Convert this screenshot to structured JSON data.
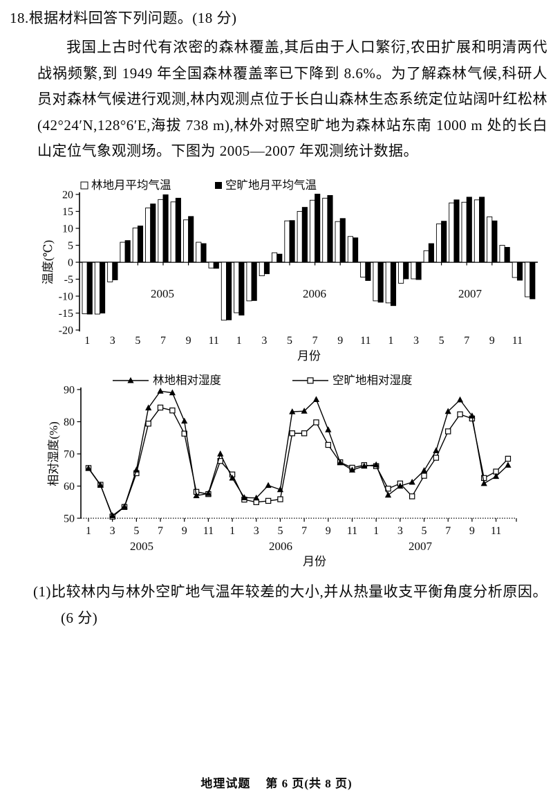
{
  "page": {
    "question_header": "18.根据材料回答下列问题。(18 分)",
    "paragraph": "我国上古时代有浓密的森林覆盖,其后由于人口繁衍,农田扩展和明清两代战祸频繁,到 1949 年全国森林覆盖率已下降到 8.6%。为了解森林气候,科研人员对森林气候进行观测,林内观测点位于长白山森林生态系统定位站阔叶红松林(42°24′N,128°6′E,海拔 738 m),林外对照空旷地为森林站东南 1000 m 处的长白山定位气象观测场。下图为 2005—2007 年观测统计数据。",
    "question1": "(1)比较林内与林外空旷地气温年较差的大小,并从热量收支平衡角度分析原因。(6 分)",
    "footer": {
      "doc": "地理试题",
      "page_info": "第 6 页(共 8 页)"
    }
  },
  "chart_data": [
    {
      "type": "bar",
      "title": "",
      "ylabel": "温度(℃)",
      "xlabel": "月份",
      "ylim": [
        -20,
        20
      ],
      "yticks": [
        20,
        15,
        10,
        5,
        0,
        -5,
        -10,
        -15,
        -20
      ],
      "xtick_labels": [
        "1",
        "3",
        "5",
        "7",
        "9",
        "11"
      ],
      "years": [
        "2005",
        "2006",
        "2007"
      ],
      "legend": [
        "林地月平均气温",
        "空旷地月平均气温"
      ],
      "legend_markers": [
        "open-square-marker",
        "filled-square-marker"
      ],
      "series": [
        {
          "name": "林地月平均气温",
          "style": "open",
          "values": [
            -15.2,
            -15.3,
            -5.8,
            5.9,
            10.1,
            16.0,
            18.5,
            17.8,
            12.5,
            5.9,
            -1.7,
            -17.1,
            -14.9,
            -11.4,
            -4.0,
            2.8,
            12.2,
            15.0,
            18.3,
            18.9,
            12.0,
            7.6,
            -4.4,
            -11.4,
            -12.0,
            -6.2,
            -4.9,
            3.4,
            11.3,
            17.5,
            17.7,
            18.4,
            13.4,
            5.0,
            -4.5,
            -10.2
          ]
        },
        {
          "name": "空旷地月平均气温",
          "style": "filled",
          "values": [
            -15.3,
            -15.0,
            -5.2,
            6.4,
            10.7,
            17.2,
            19.9,
            18.9,
            13.5,
            5.5,
            -1.8,
            -17.0,
            -15.6,
            -11.3,
            -3.4,
            2.4,
            12.3,
            16.2,
            20.1,
            19.7,
            12.9,
            7.2,
            -5.4,
            -11.8,
            -12.8,
            -4.9,
            -5.1,
            5.5,
            12.1,
            18.4,
            19.2,
            19.2,
            12.2,
            4.4,
            -5.3,
            -10.8
          ]
        }
      ]
    },
    {
      "type": "line",
      "title": "",
      "ylabel": "相对湿度(%)",
      "xlabel": "月份",
      "ylim": [
        50,
        90
      ],
      "yticks": [
        90,
        80,
        70,
        60,
        50
      ],
      "xtick_labels": [
        "1",
        "3",
        "5",
        "7",
        "9",
        "11"
      ],
      "years": [
        "2005",
        "2006",
        "2007"
      ],
      "legend": [
        "林地相对湿度",
        "空旷地相对湿度"
      ],
      "legend_markers": [
        "filled-triangle-marker",
        "open-square-marker"
      ],
      "series": [
        {
          "name": "林地相对湿度",
          "marker": "triangle-filled",
          "values": [
            65.5,
            60.3,
            50.8,
            53.6,
            65.0,
            84.3,
            89.5,
            89.0,
            80.2,
            57.0,
            57.7,
            70.0,
            62.5,
            56.4,
            56.3,
            60.2,
            58.9,
            83.1,
            83.3,
            86.9,
            77.5,
            67.3,
            65.0,
            66.2,
            66.6,
            57.2,
            60.0,
            61.2,
            64.8,
            71.0,
            83.2,
            86.8,
            81.8,
            60.8,
            63.0,
            66.5
          ]
        },
        {
          "name": "空旷地相对湿度",
          "marker": "square-open",
          "values": [
            65.6,
            60.4,
            50.5,
            53.5,
            64.0,
            79.4,
            84.4,
            83.5,
            76.3,
            58.2,
            57.5,
            67.8,
            63.6,
            55.8,
            55.0,
            55.4,
            55.9,
            76.4,
            76.4,
            79.8,
            72.8,
            67.4,
            65.7,
            66.5,
            66.2,
            59.2,
            60.8,
            56.8,
            63.2,
            68.8,
            77.0,
            82.3,
            81.0,
            62.5,
            64.5,
            68.5
          ]
        }
      ]
    }
  ]
}
